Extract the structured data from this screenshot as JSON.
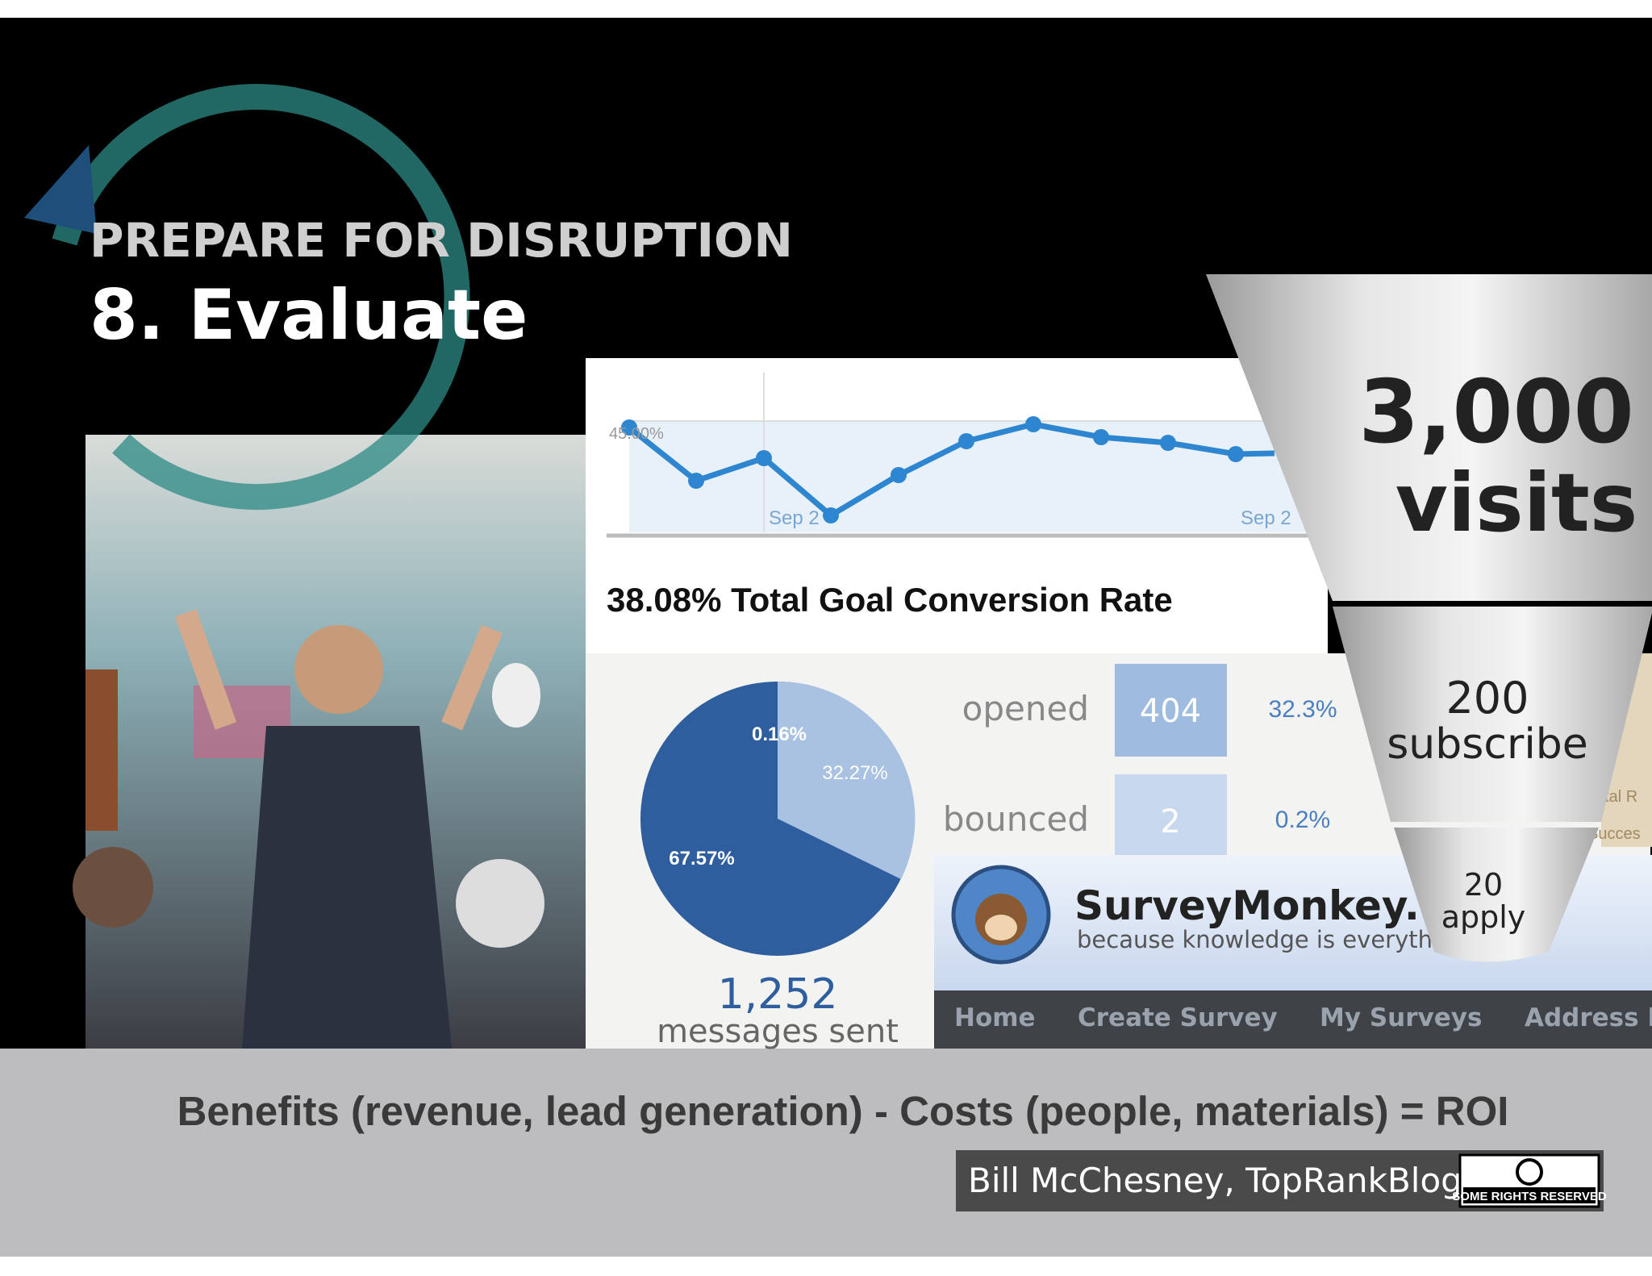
{
  "header": {
    "kicker": "PREPARE FOR DISRUPTION",
    "title": "8. Evaluate"
  },
  "analytics": {
    "y_label": "45.00%",
    "x_labels": [
      "Sep 2",
      "Sep 2"
    ],
    "metric": "38.08% Total Goal Conversion Rate"
  },
  "email": {
    "pie_labels": [
      "0.16%",
      "32.27%",
      "67.57%"
    ],
    "total": "1,252",
    "total_label": "messages sent",
    "rows": [
      {
        "label": "opened",
        "count": "404",
        "rate": "32.3%"
      },
      {
        "label": "bounced",
        "count": "2",
        "rate": "0.2%"
      }
    ],
    "side": [
      "Total R",
      "Succes"
    ]
  },
  "surveymonkey": {
    "brand": "SurveyMonkey.co",
    "tagline": "because knowledge is everyth",
    "nav": [
      "Home",
      "Create Survey",
      "My Surveys",
      "Address B"
    ]
  },
  "funnel": [
    {
      "number": "3,000",
      "label": "visits"
    },
    {
      "number": "200",
      "label": "subscribe"
    },
    {
      "number": "20",
      "label": "apply"
    }
  ],
  "footer": {
    "formula": "Benefits (revenue, lead generation) - Costs  (people, materials) = ROI",
    "credit": "Bill McChesney, TopRankBlog",
    "license": "SOME RIGHTS RESERVED"
  }
}
